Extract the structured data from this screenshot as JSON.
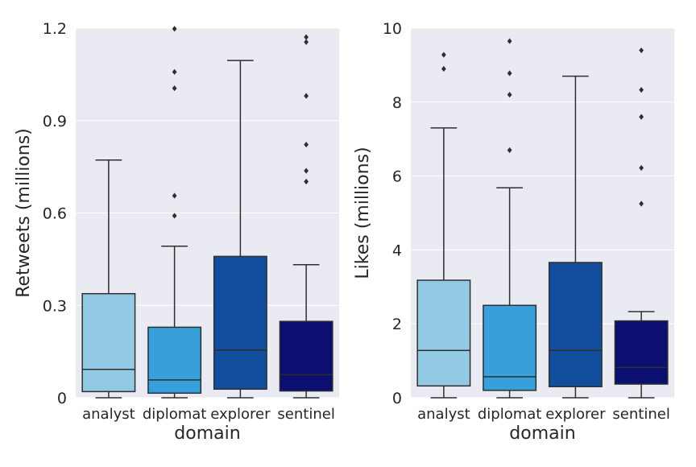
{
  "chart_data": [
    {
      "type": "box",
      "xlabel": "domain",
      "ylabel": "Retweets (millions)",
      "ylim": [
        0,
        1.2
      ],
      "yticks": [
        {
          "value": 0,
          "label": "0"
        },
        {
          "value": 0.3,
          "label": "0.3"
        },
        {
          "value": 0.6,
          "label": "0.6"
        },
        {
          "value": 0.9,
          "label": "0.9"
        },
        {
          "value": 1.2,
          "label": "1.2"
        }
      ],
      "grid": true,
      "categories": [
        "analyst",
        "diplomat",
        "explorer",
        "sentinel"
      ],
      "boxes": [
        {
          "category": "analyst",
          "whisker_low": 0.0,
          "q1": 0.02,
          "median": 0.092,
          "q3": 0.338,
          "whisker_high": 0.772,
          "outliers": []
        },
        {
          "category": "diplomat",
          "whisker_low": 0.0,
          "q1": 0.015,
          "median": 0.058,
          "q3": 0.229,
          "whisker_high": 0.492,
          "outliers": [
            0.591,
            0.656,
            1.005,
            1.058,
            1.198
          ]
        },
        {
          "category": "explorer",
          "whisker_low": 0.0,
          "q1": 0.028,
          "median": 0.155,
          "q3": 0.459,
          "whisker_high": 1.095,
          "outliers": []
        },
        {
          "category": "sentinel",
          "whisker_low": 0.0,
          "q1": 0.022,
          "median": 0.075,
          "q3": 0.248,
          "whisker_high": 0.432,
          "outliers": [
            0.702,
            0.737,
            0.822,
            0.98,
            1.155,
            1.171
          ]
        }
      ]
    },
    {
      "type": "box",
      "xlabel": "domain",
      "ylabel": "Likes (millions)",
      "ylim": [
        0,
        10
      ],
      "yticks": [
        {
          "value": 0,
          "label": "0"
        },
        {
          "value": 2,
          "label": "2"
        },
        {
          "value": 4,
          "label": "4"
        },
        {
          "value": 6,
          "label": "6"
        },
        {
          "value": 8,
          "label": "8"
        },
        {
          "value": 10,
          "label": "10"
        }
      ],
      "grid": true,
      "categories": [
        "analyst",
        "diplomat",
        "explorer",
        "sentinel"
      ],
      "boxes": [
        {
          "category": "analyst",
          "whisker_low": 0.0,
          "q1": 0.32,
          "median": 1.28,
          "q3": 3.18,
          "whisker_high": 7.3,
          "outliers": [
            8.9,
            9.28
          ]
        },
        {
          "category": "diplomat",
          "whisker_low": 0.0,
          "q1": 0.2,
          "median": 0.57,
          "q3": 2.5,
          "whisker_high": 5.68,
          "outliers": [
            6.7,
            8.2,
            8.78,
            9.65
          ]
        },
        {
          "category": "explorer",
          "whisker_low": 0.0,
          "q1": 0.3,
          "median": 1.28,
          "q3": 3.66,
          "whisker_high": 8.7,
          "outliers": []
        },
        {
          "category": "sentinel",
          "whisker_low": 0.0,
          "q1": 0.37,
          "median": 0.82,
          "q3": 2.08,
          "whisker_high": 2.33,
          "outliers": [
            5.25,
            6.22,
            7.6,
            8.33,
            9.4
          ]
        }
      ]
    }
  ],
  "colors": {
    "analyst": "#92c9e5",
    "diplomat": "#379fdc",
    "explorer": "#134d9d",
    "sentinel": "#0b0f70",
    "plot_background": "#eaeaf2",
    "gridline": "#ffffff",
    "lines": "#2f2f2f"
  }
}
